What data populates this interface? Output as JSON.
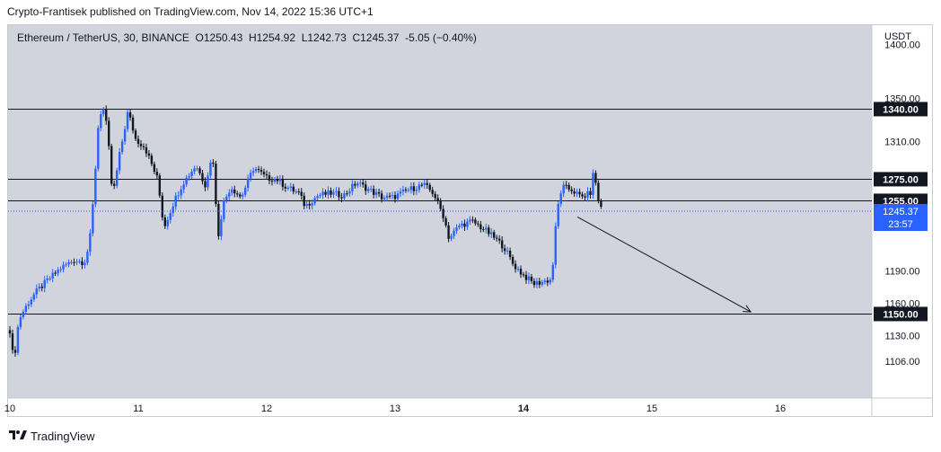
{
  "header": {
    "publisher_line": "Crypto-Frantisek published on TradingView.com, Nov 14, 2022 15:36 UTC+1"
  },
  "legend": {
    "symbol": "Ethereum / TetherUS, 30, BINANCE",
    "open": "O1250.43",
    "high": "H1254.92",
    "low": "L1242.73",
    "close": "C1245.37",
    "change": "-5.05 (−0.40%)"
  },
  "footer": {
    "brand": "TradingView"
  },
  "colors": {
    "background": "#d1d4dc",
    "up": "#2962ff",
    "down": "#131722",
    "last_price": "#2962ff"
  },
  "chart_data": {
    "type": "candlestick",
    "currency_label": "USDT",
    "price_axis_ticks": [
      1400,
      1350,
      1310,
      1190,
      1160,
      1130,
      1106
    ],
    "price_axis_tick_labels": [
      "1400.00",
      "1350.00",
      "1310.00",
      "1190.00",
      "1160.00",
      "1130.00",
      "1106.00"
    ],
    "x_tick_labels": [
      "10",
      "11",
      "12",
      "13",
      "14",
      "15",
      "16"
    ],
    "horizontal_levels": [
      {
        "value": 1340,
        "label": "1340.00"
      },
      {
        "value": 1275,
        "label": "1275.00"
      },
      {
        "value": 1255,
        "label": "1255.00"
      },
      {
        "value": 1150,
        "label": "1150.00"
      }
    ],
    "last_price": {
      "value": 1245.37,
      "label": "1245.37",
      "countdown": "23:57"
    },
    "projection_arrow": {
      "from": {
        "day": 14.42,
        "price": 1240
      },
      "to": {
        "day": 15.77,
        "price": 1152
      }
    },
    "price_path": [
      [
        10.0,
        1135
      ],
      [
        10.03,
        1105
      ],
      [
        10.07,
        1145
      ],
      [
        10.14,
        1160
      ],
      [
        10.2,
        1170
      ],
      [
        10.3,
        1182
      ],
      [
        10.4,
        1193
      ],
      [
        10.5,
        1200
      ],
      [
        10.58,
        1198
      ],
      [
        10.62,
        1215
      ],
      [
        10.66,
        1270
      ],
      [
        10.68,
        1318
      ],
      [
        10.72,
        1345
      ],
      [
        10.76,
        1320
      ],
      [
        10.8,
        1258
      ],
      [
        10.85,
        1295
      ],
      [
        10.92,
        1338
      ],
      [
        10.98,
        1312
      ],
      [
        11.05,
        1305
      ],
      [
        11.1,
        1290
      ],
      [
        11.15,
        1275
      ],
      [
        11.2,
        1230
      ],
      [
        11.28,
        1255
      ],
      [
        11.35,
        1272
      ],
      [
        11.45,
        1288
      ],
      [
        11.52,
        1270
      ],
      [
        11.58,
        1298
      ],
      [
        11.62,
        1220
      ],
      [
        11.66,
        1252
      ],
      [
        11.72,
        1268
      ],
      [
        11.8,
        1258
      ],
      [
        11.9,
        1286
      ],
      [
        12.0,
        1276
      ],
      [
        12.08,
        1275
      ],
      [
        12.15,
        1268
      ],
      [
        12.25,
        1262
      ],
      [
        12.3,
        1250
      ],
      [
        12.4,
        1260
      ],
      [
        12.5,
        1262
      ],
      [
        12.6,
        1260
      ],
      [
        12.7,
        1272
      ],
      [
        12.8,
        1265
      ],
      [
        12.9,
        1258
      ],
      [
        12.98,
        1258
      ],
      [
        13.1,
        1265
      ],
      [
        13.22,
        1270
      ],
      [
        13.3,
        1262
      ],
      [
        13.38,
        1240
      ],
      [
        13.42,
        1220
      ],
      [
        13.5,
        1232
      ],
      [
        13.6,
        1236
      ],
      [
        13.7,
        1228
      ],
      [
        13.78,
        1220
      ],
      [
        13.85,
        1212
      ],
      [
        13.92,
        1196
      ],
      [
        14.0,
        1186
      ],
      [
        14.08,
        1178
      ],
      [
        14.15,
        1180
      ],
      [
        14.22,
        1182
      ],
      [
        14.26,
        1245
      ],
      [
        14.3,
        1268
      ],
      [
        14.38,
        1265
      ],
      [
        14.45,
        1258
      ],
      [
        14.52,
        1262
      ],
      [
        14.55,
        1285
      ],
      [
        14.58,
        1255
      ],
      [
        14.62,
        1246
      ]
    ]
  }
}
